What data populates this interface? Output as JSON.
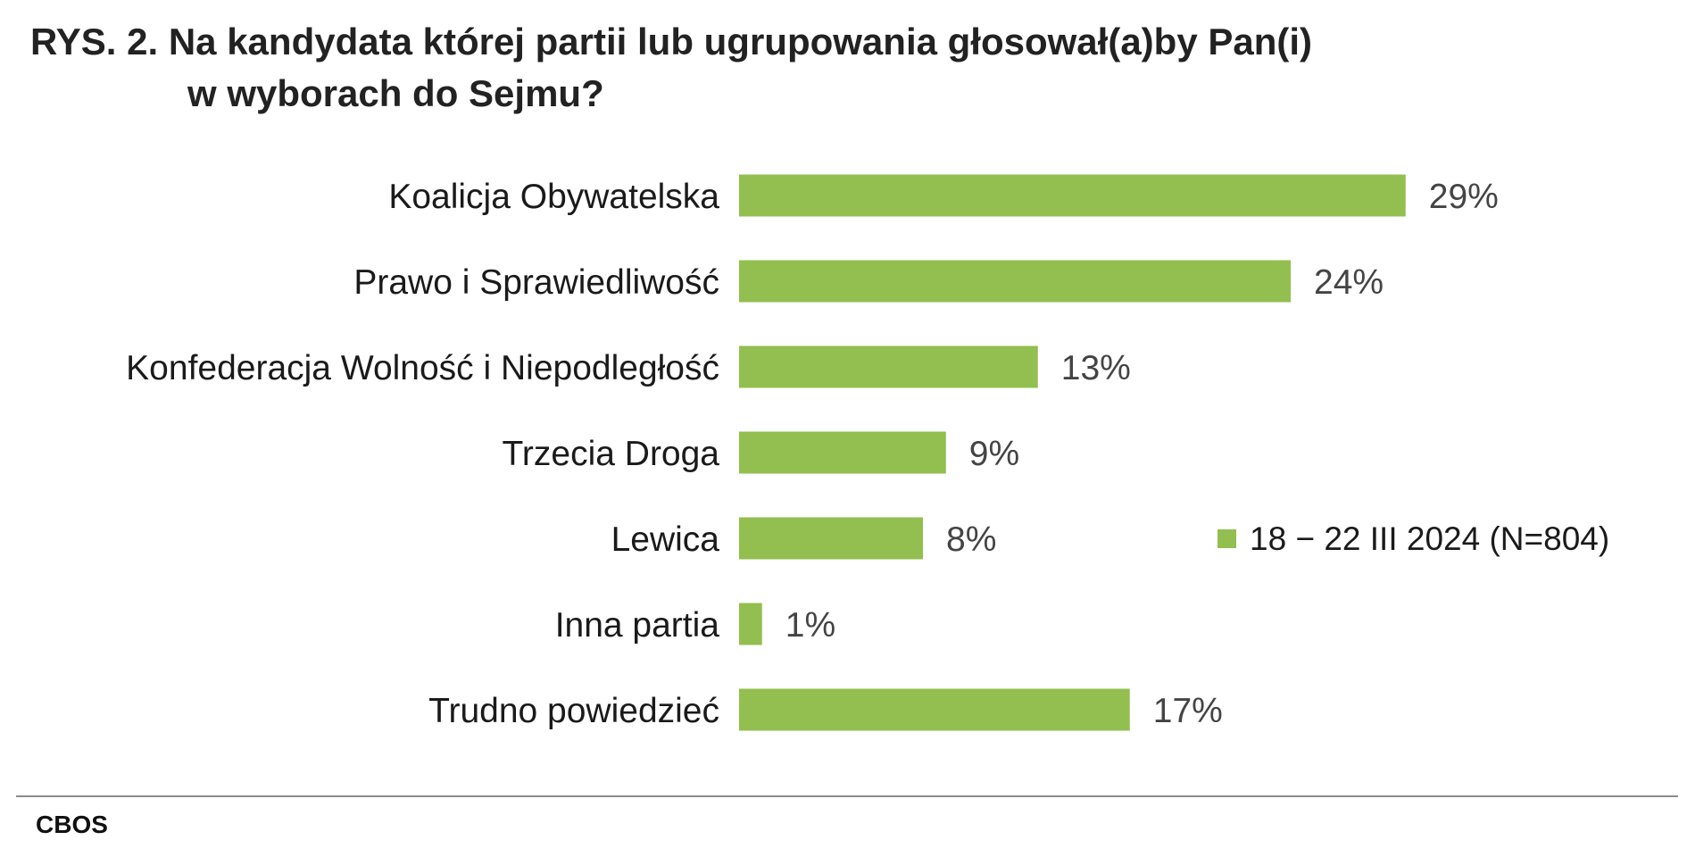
{
  "title": {
    "line1": "RYS. 2. Na kandydata której partii lub ugrupowania głosował(a)by Pan(i)",
    "line2": "w wyborach do Sejmu?"
  },
  "chart_data": {
    "type": "bar",
    "orientation": "horizontal",
    "categories": [
      "Koalicja Obywatelska",
      "Prawo i Sprawiedliwość",
      "Konfederacja Wolność i Niepodległość",
      "Trzecia Droga",
      "Lewica",
      "Inna partia",
      "Trudno powiedzieć"
    ],
    "series": [
      {
        "name": "18 − 22 III 2024 (N=804)",
        "values": [
          29,
          24,
          13,
          9,
          8,
          1,
          17
        ],
        "labels": [
          "29%",
          "24%",
          "13%",
          "9%",
          "8%",
          "1%",
          "17%"
        ],
        "color": "#92bf4f"
      }
    ],
    "xlim": [
      0,
      35
    ],
    "grid": false,
    "legend": "right"
  },
  "source": "CBOS"
}
